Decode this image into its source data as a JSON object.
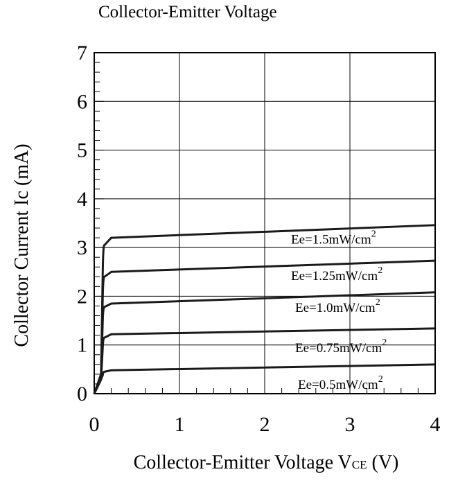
{
  "chart_data": {
    "type": "line",
    "title": "Collector-Emitter Voltage",
    "xlabel": "Collector-Emitter Voltage V",
    "xlabel_subscript": "CE",
    "xlabel_unit": " (V)",
    "ylabel": "Collector Current Ic (mA)",
    "xlim": [
      0,
      4
    ],
    "ylim": [
      0,
      7
    ],
    "x_ticks": [
      0,
      1,
      2,
      3,
      4
    ],
    "y_ticks": [
      0,
      1,
      2,
      3,
      4,
      5,
      6,
      7
    ],
    "grid": true,
    "series": [
      {
        "name": "Ee=1.5mW/cm",
        "superscript": "2",
        "x": [
          0.0,
          0.08,
          0.1,
          0.12,
          0.2,
          4.0
        ],
        "y": [
          0.0,
          0.4,
          2.5,
          3.05,
          3.2,
          3.46
        ]
      },
      {
        "name": "Ee=1.25mW/cm",
        "superscript": "2",
        "x": [
          0.0,
          0.08,
          0.1,
          0.12,
          0.2,
          4.0
        ],
        "y": [
          0.0,
          0.4,
          2.0,
          2.4,
          2.5,
          2.73
        ]
      },
      {
        "name": "Ee=1.0mW/cm",
        "superscript": "2",
        "x": [
          0.0,
          0.08,
          0.1,
          0.12,
          0.2,
          4.0
        ],
        "y": [
          0.0,
          0.35,
          1.5,
          1.78,
          1.85,
          2.08
        ]
      },
      {
        "name": "Ee=0.75mW/cm",
        "superscript": "2",
        "x": [
          0.0,
          0.08,
          0.1,
          0.12,
          0.2,
          4.0
        ],
        "y": [
          0.0,
          0.3,
          0.95,
          1.15,
          1.22,
          1.34
        ]
      },
      {
        "name": "Ee=0.5mW/cm",
        "superscript": "2",
        "x": [
          0.0,
          0.07,
          0.1,
          0.12,
          0.2,
          4.0
        ],
        "y": [
          0.0,
          0.25,
          0.38,
          0.45,
          0.48,
          0.6
        ]
      }
    ]
  }
}
